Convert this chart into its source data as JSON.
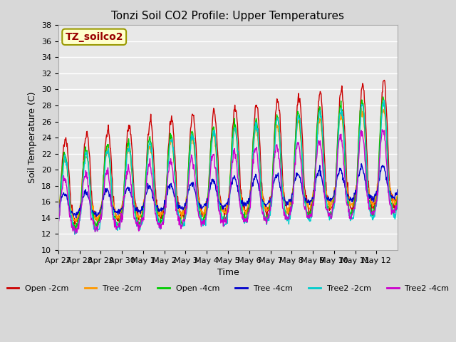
{
  "title": "Tonzi Soil CO2 Profile: Upper Temperatures",
  "xlabel": "Time",
  "ylabel": "Soil Temperature (C)",
  "ylim": [
    10,
    38
  ],
  "yticks": [
    10,
    12,
    14,
    16,
    18,
    20,
    22,
    24,
    26,
    28,
    30,
    32,
    34,
    36,
    38
  ],
  "xtick_labels": [
    "Apr 27",
    "Apr 28",
    "Apr 29",
    "Apr 30",
    "May 1",
    "May 2",
    "May 3",
    "May 4",
    "May 5",
    "May 6",
    "May 7",
    "May 8",
    "May 9",
    "May 10",
    "May 11",
    "May 12"
  ],
  "series_colors": {
    "Open -2cm": "#cc0000",
    "Tree -2cm": "#ff9900",
    "Open -4cm": "#00cc00",
    "Tree -4cm": "#0000cc",
    "Tree2 -2cm": "#00cccc",
    "Tree2 -4cm": "#cc00cc"
  },
  "box_label": "TZ_soilco2",
  "box_text_color": "#990000",
  "box_face_color": "#ffffcc",
  "box_edge_color": "#999900",
  "plot_bg_color": "#e8e8e8",
  "fig_bg_color": "#d8d8d8",
  "grid_color": "#ffffff",
  "n_days": 16,
  "n_per_day": 48
}
